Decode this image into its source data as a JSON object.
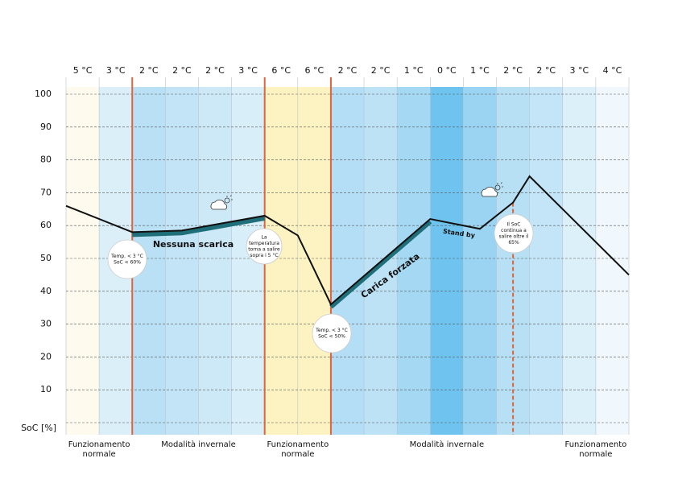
{
  "chart_data": {
    "type": "line",
    "y_label": "SoC [%]",
    "column_labels": [
      "5 °C",
      "3 °C",
      "2 °C",
      "2 °C",
      "2 °C",
      "3 °C",
      "6 °C",
      "6 °C",
      "2 °C",
      "2 °C",
      "1 °C",
      "0 °C",
      "1 °C",
      "2 °C",
      "2 °C",
      "3 °C",
      "4 °C"
    ],
    "column_colors": [
      "#fefbee",
      "#dbeff9",
      "#b9e0f5",
      "#c3e4f6",
      "#cde9f7",
      "#d8eef9",
      "#fdf3c2",
      "#fdf3c2",
      "#b4def5",
      "#bde2f6",
      "#a5d8f3",
      "#6ec4ee",
      "#9bd4f2",
      "#b7e0f5",
      "#c3e5f7",
      "#dcf0fa",
      "#f1f8fd"
    ],
    "xlim": [
      0,
      17
    ],
    "ylim": [
      0,
      100
    ],
    "yticks": [
      10,
      20,
      30,
      40,
      50,
      60,
      70,
      80,
      90,
      100
    ],
    "grid": true,
    "x": [
      0,
      2,
      3.5,
      6,
      7,
      8,
      11,
      12.5,
      13.5,
      14,
      17
    ],
    "series": [
      {
        "color": "#111111",
        "values": [
          66,
          58,
          58.5,
          63,
          57,
          36,
          62,
          59,
          67,
          75,
          45
        ]
      }
    ],
    "highlights": [
      {
        "label": "Nessuna scarica",
        "from": 2,
        "to": 6,
        "color": "#1f6f7a"
      },
      {
        "label": "Carica forzata",
        "from": 8,
        "to": 11,
        "color": "#1f6f7a"
      }
    ],
    "standby_label": "Stand by",
    "phase_boundaries": [
      2,
      6,
      8
    ],
    "dashed_marker": 13.5,
    "boundary_color": "#e0643c",
    "phases": [
      {
        "lines": [
          "Funzionamento",
          "normale"
        ],
        "from": 0,
        "to": 2
      },
      {
        "lines": [
          "Modalità invernale"
        ],
        "from": 2,
        "to": 6
      },
      {
        "lines": [
          "Funzionamento",
          "normale"
        ],
        "from": 6,
        "to": 8
      },
      {
        "lines": [
          "Modalità invernale"
        ],
        "from": 8,
        "to": 15
      },
      {
        "lines": [
          "Funzionamento",
          "normale"
        ],
        "from": 15,
        "to": 17
      }
    ],
    "callouts": [
      {
        "lines": [
          "Temp. < 3 °C",
          "SoC < 60%"
        ]
      },
      {
        "lines": [
          "La",
          "temperatura",
          "torna a salire",
          "sopra i 5 °C"
        ]
      },
      {
        "lines": [
          "Temp. < 3 °C",
          "SoC < 50%"
        ]
      },
      {
        "lines": [
          "Il SoC",
          "continua a",
          "salire oltre il",
          "65%"
        ]
      }
    ]
  }
}
